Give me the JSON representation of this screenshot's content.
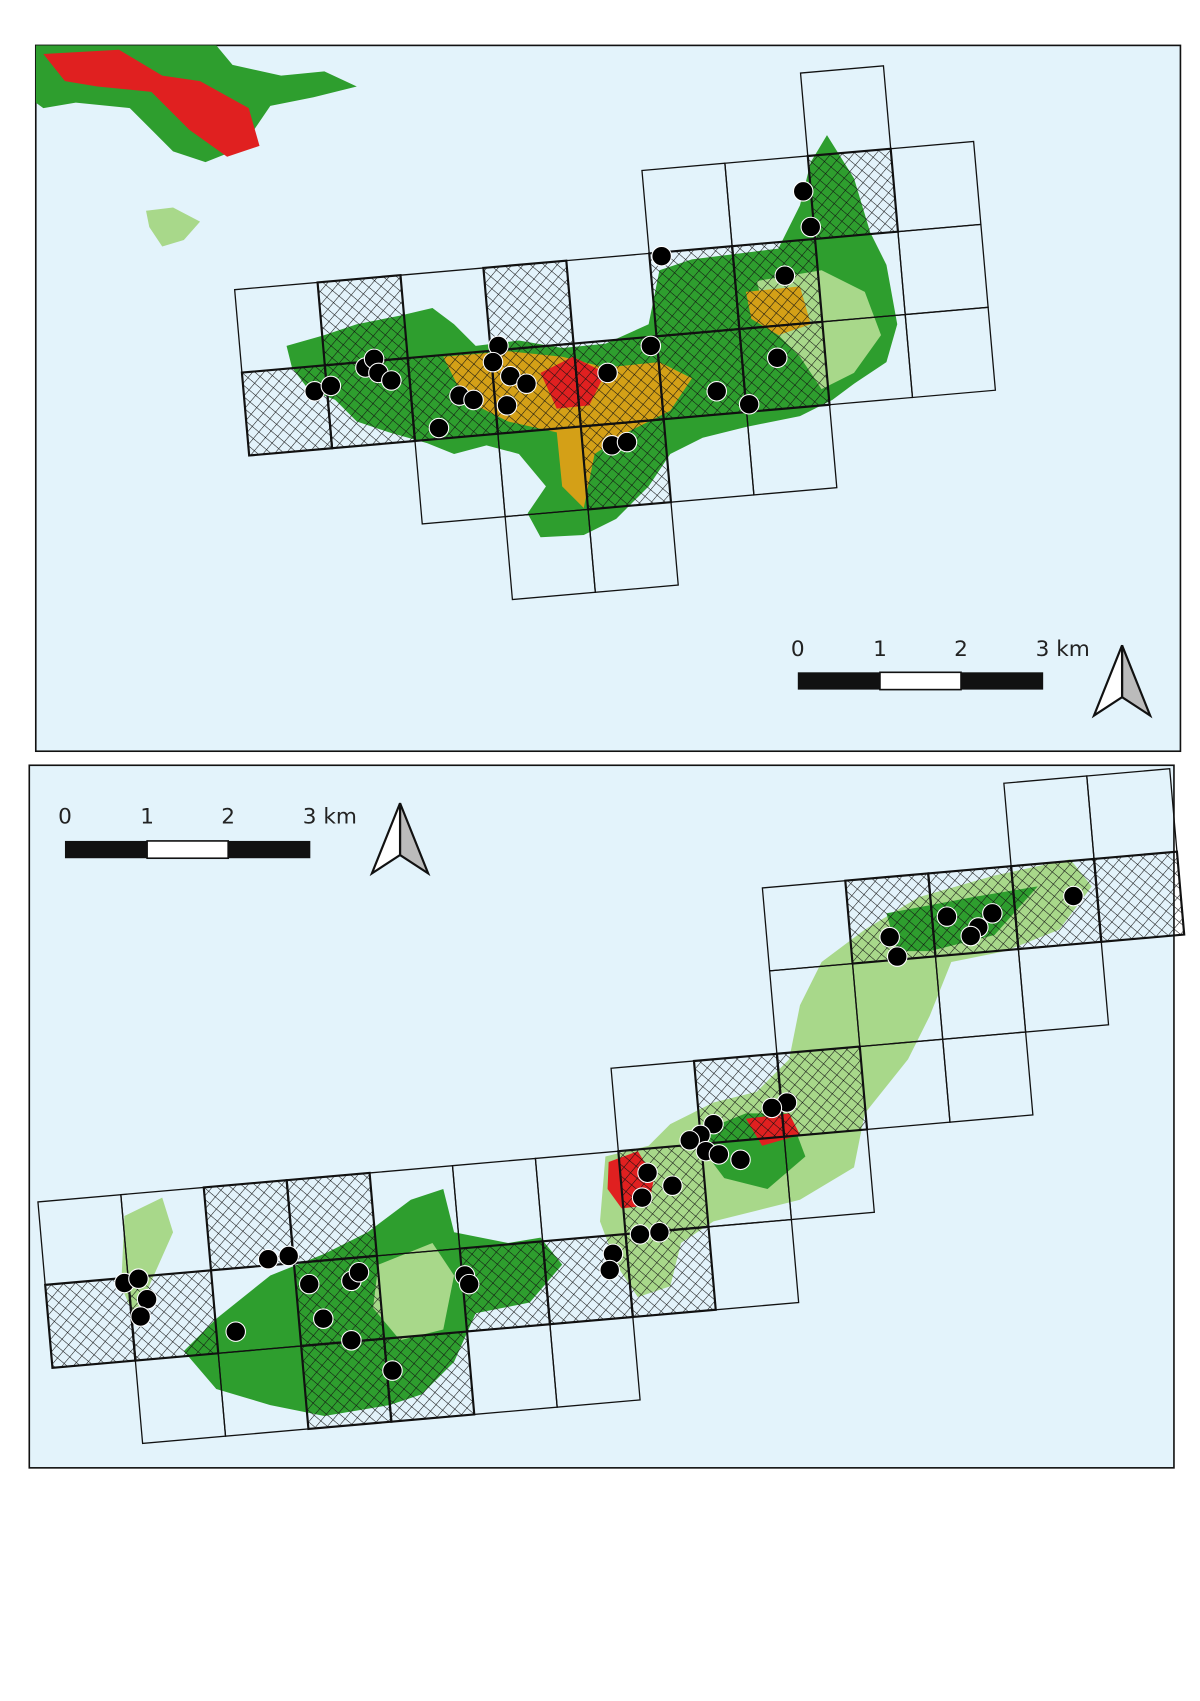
{
  "maps": [
    {
      "scalebar": {
        "labels": [
          "0",
          "1",
          "2",
          "3 km"
        ]
      }
    },
    {
      "scalebar": {
        "labels": [
          "0",
          "1",
          "2",
          "3 km"
        ]
      }
    }
  ]
}
